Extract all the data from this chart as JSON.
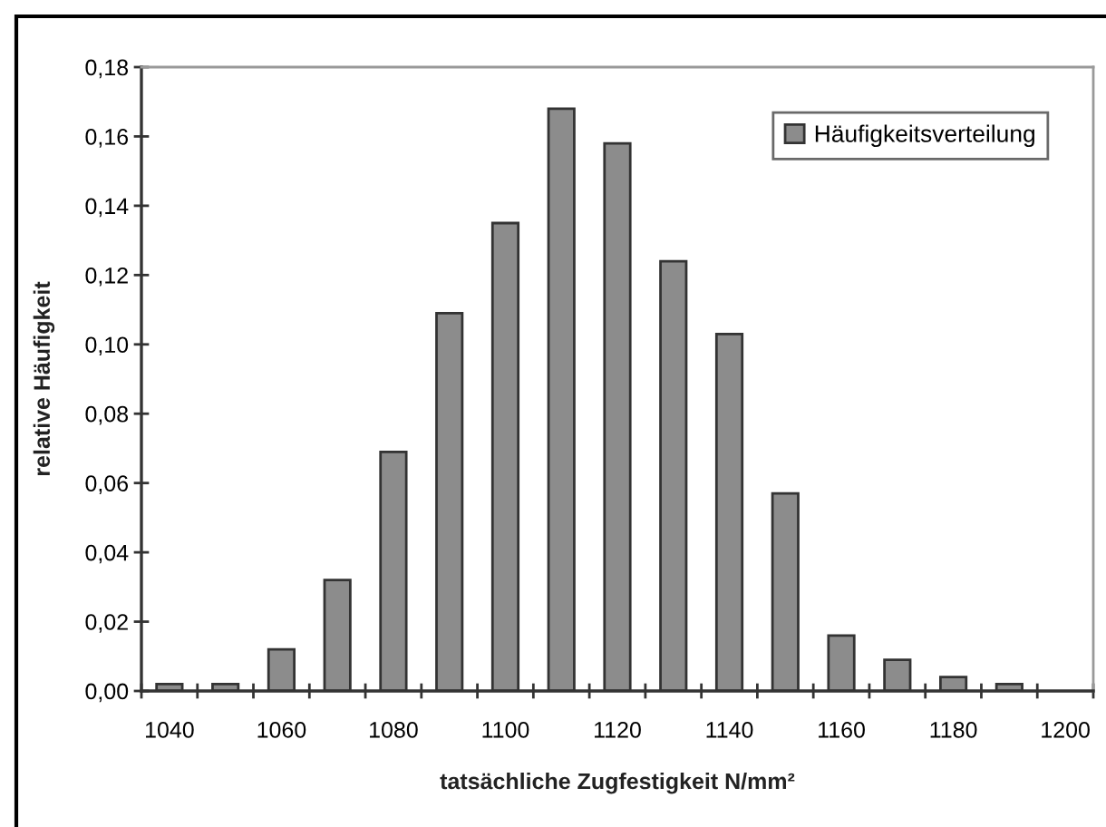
{
  "chart_data": {
    "type": "bar",
    "xlabel": "tatsächliche Zugfestigkeit N/mm²",
    "ylabel": "relative Häufigkeit",
    "categories": [
      "1040",
      null,
      "1060",
      null,
      "1080",
      null,
      "1100",
      null,
      "1120",
      null,
      "1140",
      null,
      "1160",
      null,
      "1180",
      null,
      "1200"
    ],
    "series": [
      {
        "name": "Häufigkeitsverteilung",
        "color": "#8c8c8c",
        "values": [
          0.002,
          0.002,
          0.012,
          0.032,
          0.069,
          0.109,
          0.135,
          0.168,
          0.158,
          0.124,
          0.103,
          0.057,
          0.016,
          0.009,
          0.004,
          0.002,
          null
        ]
      }
    ],
    "ylim": [
      0,
      0.18
    ],
    "yticks": [
      {
        "value": 0,
        "label": "0,00"
      },
      {
        "value": 0.02,
        "label": "0,02"
      },
      {
        "value": 0.04,
        "label": "0,04"
      },
      {
        "value": 0.06,
        "label": "0,06"
      },
      {
        "value": 0.08,
        "label": "0,08"
      },
      {
        "value": 0.1,
        "label": "0,10"
      },
      {
        "value": 0.12,
        "label": "0,12"
      },
      {
        "value": 0.14,
        "label": "0,14"
      },
      {
        "value": 0.16,
        "label": "0,16"
      },
      {
        "value": 0.18,
        "label": "0,18"
      }
    ],
    "grid": false,
    "legend": "top right"
  }
}
